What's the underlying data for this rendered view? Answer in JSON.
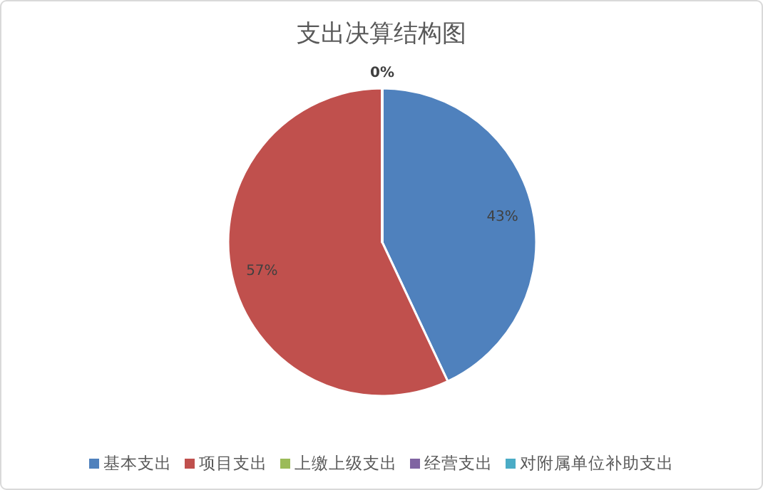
{
  "chart_data": {
    "type": "pie",
    "title": "支出决算结构图",
    "categories": [
      "基本支出",
      "项目支出",
      "上缴上级支出",
      "经营支出",
      "对附属单位补助支出"
    ],
    "values": [
      43,
      57,
      0,
      0,
      0
    ],
    "value_labels": [
      "43%",
      "57%",
      "0%",
      null,
      null
    ],
    "colors": [
      "#4f81bd",
      "#c0504d",
      "#9bbb59",
      "#8064a2",
      "#4bacc6"
    ],
    "legend": "bottom"
  }
}
